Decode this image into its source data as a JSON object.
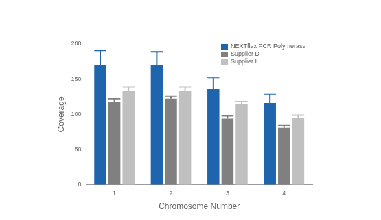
{
  "chart_data": {
    "type": "bar",
    "x_label": "Chromosome Number",
    "y_label": "Coverage",
    "categories": [
      "1",
      "2",
      "3",
      "4"
    ],
    "series": [
      {
        "name": "NEXTflex PCR Polymerase",
        "color": "#1f65ad",
        "values": [
          170,
          170,
          136,
          116
        ],
        "errors": [
          21,
          19,
          16,
          13
        ]
      },
      {
        "name": "Supplier D",
        "color": "#808080",
        "values": [
          117,
          122,
          94,
          81
        ],
        "errors": [
          5,
          4,
          4,
          3
        ]
      },
      {
        "name": "Supplier I",
        "color": "#c0c0c0",
        "values": [
          133,
          133,
          114,
          95
        ],
        "errors": [
          6,
          6,
          4,
          4
        ]
      }
    ],
    "ylim": [
      0,
      200
    ],
    "yticks": [
      0,
      50,
      100,
      150,
      200
    ],
    "grid": false,
    "legend": "upper right"
  }
}
